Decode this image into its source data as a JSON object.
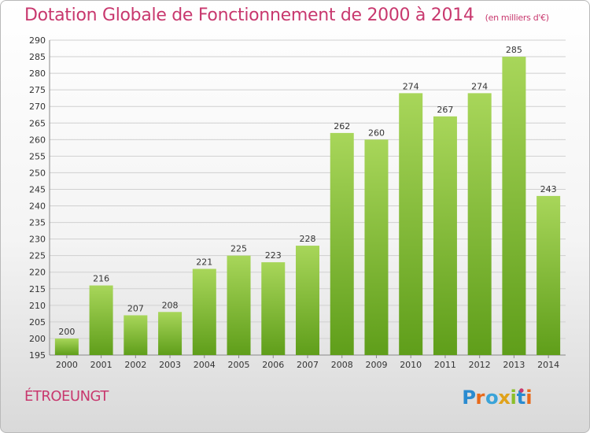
{
  "title": "Dotation Globale de Fonctionnement de 2000 à 2014",
  "subtitle": "(en milliers d'€)",
  "commune": "ÉTROEUNGT",
  "logo_text": "Proxiti",
  "colors": {
    "title": "#c8386e",
    "bar_top": "#a8d65a",
    "bar_bottom": "#5f9e1a",
    "grid": "#d0d0d0"
  },
  "chart_data": {
    "type": "bar",
    "title": "Dotation Globale de Fonctionnement de 2000 à 2014",
    "subtitle": "(en milliers d'€)",
    "xlabel": "",
    "ylabel": "",
    "categories": [
      "2000",
      "2001",
      "2002",
      "2003",
      "2004",
      "2005",
      "2006",
      "2007",
      "2008",
      "2009",
      "2010",
      "2011",
      "2012",
      "2013",
      "2014"
    ],
    "values": [
      200,
      216,
      207,
      208,
      221,
      225,
      223,
      228,
      262,
      260,
      274,
      267,
      274,
      285,
      243
    ],
    "ylim": [
      195,
      290
    ],
    "ytick_step": 5,
    "grid": true,
    "legend": "none"
  }
}
